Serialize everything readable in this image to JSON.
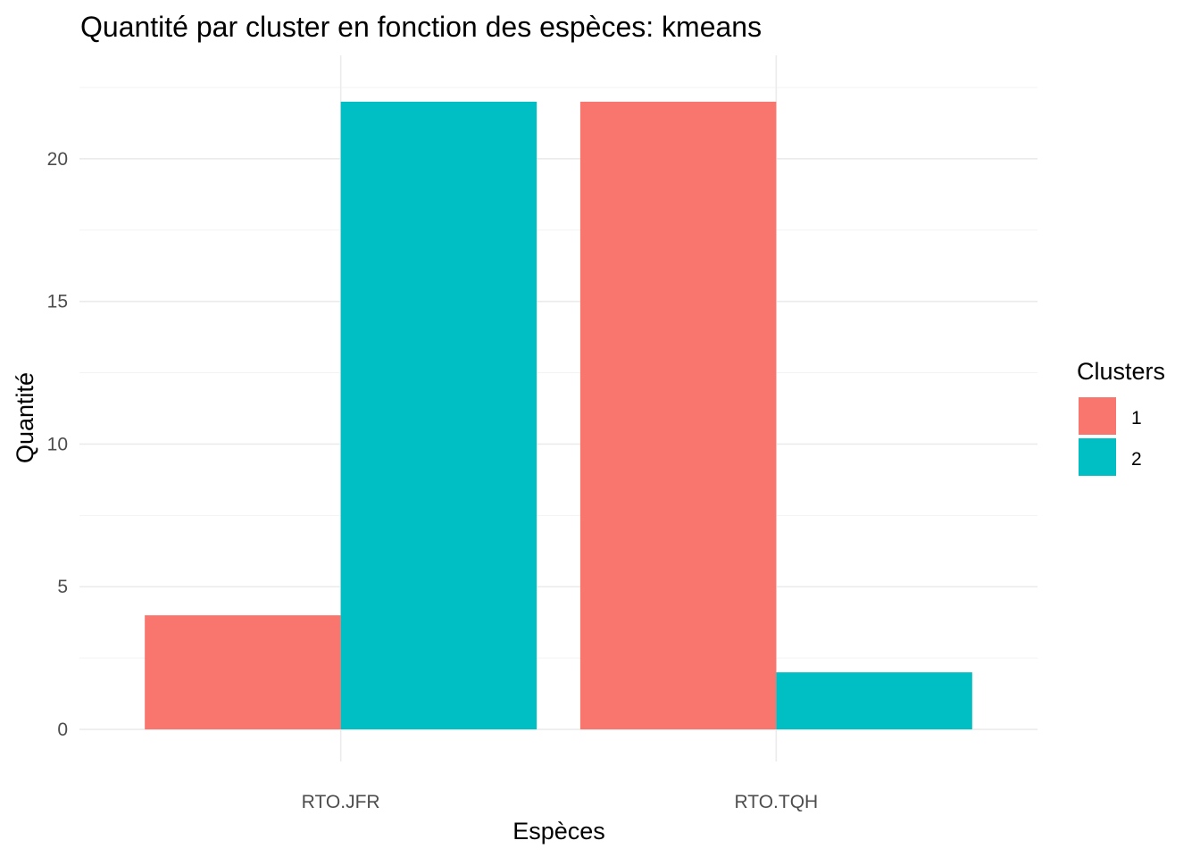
{
  "chart_data": {
    "type": "bar",
    "title": "Quantité par cluster en fonction des espèces: kmeans",
    "xlabel": "Espèces",
    "ylabel": "Quantité",
    "categories": [
      "RTO.JFR",
      "RTO.TQH"
    ],
    "series": [
      {
        "name": "1",
        "values": [
          4,
          22
        ],
        "color": "#F8766D"
      },
      {
        "name": "2",
        "values": [
          22,
          2
        ],
        "color": "#00BFC4"
      }
    ],
    "ylim": [
      0,
      22.5
    ],
    "yticks": [
      0,
      5,
      10,
      15,
      20
    ],
    "grid": true,
    "legend": {
      "title": "Clusters",
      "position": "right"
    },
    "bar_layout": "dodge"
  }
}
